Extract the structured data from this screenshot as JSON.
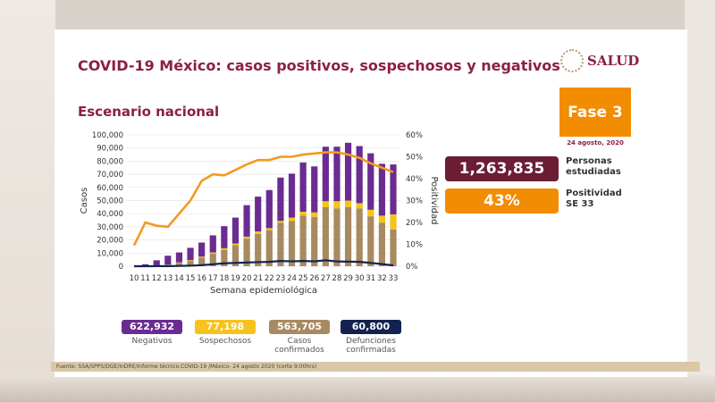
{
  "title": "COVID-19 México: casos positivos, sospechosos y negativos",
  "subtitle": "Escenario nacional",
  "logo": "SALUD",
  "fase": "Fase 3",
  "date": "24 agosto, 2020",
  "personas": {
    "value": "1,263,835",
    "label1": "Personas",
    "label2": "estudiadas"
  },
  "positividad": {
    "value": "43%",
    "label1": "Positividad",
    "label2": "SE 33"
  },
  "legend": [
    {
      "value": "622,932",
      "label": "Negativos",
      "label2": "",
      "color": "#6a2c91"
    },
    {
      "value": "77,198",
      "label": "Sospechosos",
      "label2": "",
      "color": "#f6c21b"
    },
    {
      "value": "563,705",
      "label": "Casos",
      "label2": "confirmados",
      "color": "#a88a60"
    },
    {
      "value": "60,800",
      "label": "Defunciones",
      "label2": "confirmadas",
      "color": "#14224f"
    }
  ],
  "source": "Fuente: SSA/SPPS/DGE/InDRE/Informe técnico.COVID-19 /México- 24 agosto 2020 (corte 9:00hrs)",
  "chart_data": {
    "type": "bar",
    "xlabel": "Semana epidemiológica",
    "ylabel": "Casos",
    "y2label": "Positividad",
    "ylim": [
      0,
      100000
    ],
    "y2lim": [
      0,
      60
    ],
    "yticks": [
      "0",
      "10,000",
      "20,000",
      "30,000",
      "40,000",
      "50,000",
      "60,000",
      "70,000",
      "80,000",
      "90,000",
      "100,000"
    ],
    "y2ticks": [
      "0%",
      "10%",
      "20%",
      "30%",
      "40%",
      "50%",
      "60%"
    ],
    "categories": [
      "10",
      "11",
      "12",
      "13",
      "14",
      "15",
      "16",
      "17",
      "18",
      "19",
      "20",
      "21",
      "22",
      "23",
      "24",
      "25",
      "26",
      "27",
      "28",
      "29",
      "30",
      "31",
      "32",
      "33"
    ],
    "series": [
      {
        "name": "Casos confirmados",
        "type": "bar",
        "color": "#a88a60",
        "values": [
          0,
          200,
          500,
          1000,
          2500,
          4000,
          6500,
          9500,
          12500,
          16000,
          21000,
          24500,
          27500,
          33000,
          34500,
          38500,
          37500,
          45000,
          44000,
          45000,
          44000,
          38000,
          33000,
          28000
        ]
      },
      {
        "name": "Sospechosos",
        "type": "bar",
        "color": "#f6c21b",
        "values": [
          0,
          100,
          200,
          300,
          400,
          600,
          800,
          1000,
          1200,
          1300,
          1500,
          2000,
          1500,
          1500,
          2500,
          3000,
          3500,
          4500,
          5500,
          5000,
          4000,
          5000,
          5500,
          11500
        ]
      },
      {
        "name": "Negativos",
        "type": "bar",
        "color": "#6a2c91",
        "values": [
          0,
          1200,
          3800,
          6700,
          7600,
          9400,
          10700,
          13000,
          16800,
          19700,
          24000,
          26500,
          29000,
          33000,
          33500,
          37500,
          35000,
          41500,
          41500,
          44000,
          43500,
          43000,
          39500,
          38000
        ]
      },
      {
        "name": "Defunciones confirmadas",
        "type": "line",
        "axis": "left",
        "color": "#14224f",
        "values": [
          0,
          0,
          50,
          100,
          200,
          400,
          800,
          1500,
          2200,
          2500,
          2800,
          3100,
          3300,
          4000,
          3700,
          4000,
          3700,
          4500,
          3600,
          3500,
          3300,
          2500,
          1600,
          600
        ]
      },
      {
        "name": "Positividad",
        "type": "line",
        "axis": "right",
        "color": "#f39a1e",
        "values": [
          9.5,
          20,
          18.5,
          18,
          24,
          30,
          39,
          42,
          41.5,
          44,
          46.5,
          48.5,
          48.5,
          50,
          50,
          51,
          51.5,
          52,
          52,
          51,
          49.5,
          47,
          45,
          43
        ]
      }
    ],
    "grid": true
  }
}
